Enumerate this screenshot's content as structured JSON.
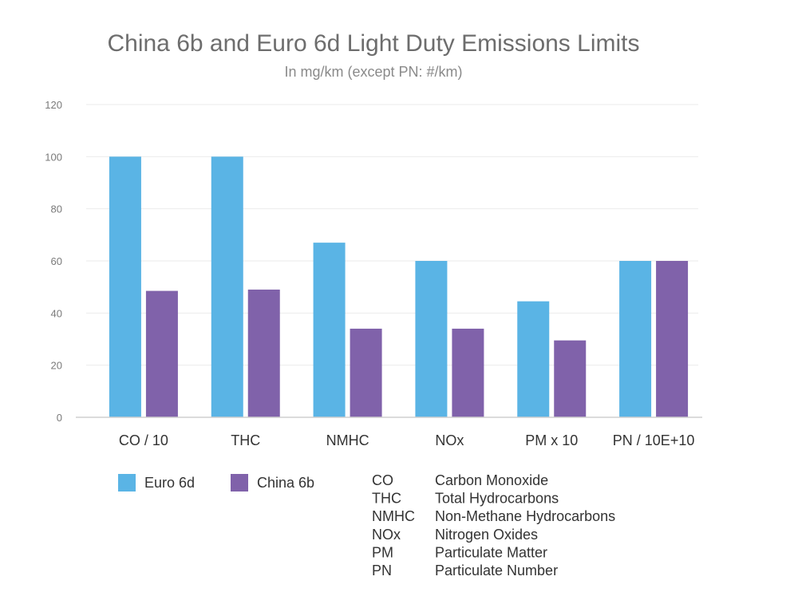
{
  "chart_data": {
    "type": "bar",
    "title": "China 6b and Euro 6d Light Duty Emissions Limits",
    "subtitle": "In mg/km (except PN: #/km)",
    "categories": [
      "CO / 10",
      "THC",
      "NMHC",
      "NOx",
      "PM x 10",
      "PN / 10E+10"
    ],
    "series": [
      {
        "name": "Euro 6d",
        "color": "#5ab4e5",
        "values": [
          100,
          100,
          67,
          60,
          44.5,
          60
        ]
      },
      {
        "name": "China 6b",
        "color": "#8062aa",
        "values": [
          48.5,
          49,
          34,
          34,
          29.5,
          60
        ]
      }
    ],
    "yticks": [
      "0",
      "20",
      "40",
      "60",
      "80",
      "100",
      "120"
    ],
    "ylim": [
      0,
      120
    ],
    "grid": true,
    "legend": "bottom-left",
    "abbreviations": [
      {
        "abbr": "CO",
        "meaning": "Carbon Monoxide"
      },
      {
        "abbr": "THC",
        "meaning": "Total Hydrocarbons"
      },
      {
        "abbr": "NMHC",
        "meaning": "Non-Methane Hydrocarbons"
      },
      {
        "abbr": "NOx",
        "meaning": "Nitrogen Oxides"
      },
      {
        "abbr": "PM",
        "meaning": "Particulate Matter"
      },
      {
        "abbr": "PN",
        "meaning": "Particulate Number"
      }
    ]
  }
}
